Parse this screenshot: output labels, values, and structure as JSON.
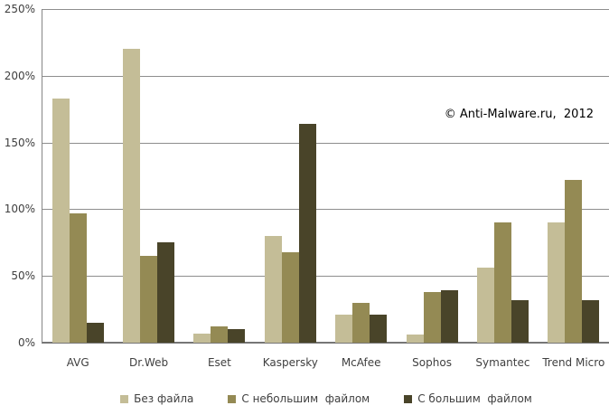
{
  "chart_data": {
    "type": "bar",
    "categories": [
      "AVG",
      "Dr.Web",
      "Eset",
      "Kaspersky",
      "McAfee",
      "Sophos",
      "Symantec",
      "Trend Micro"
    ],
    "series": [
      {
        "name": "Без файла",
        "color": "#C4BD97",
        "values": [
          183,
          220,
          7,
          80,
          21,
          6,
          56,
          90
        ]
      },
      {
        "name": "С небольшим  файлом",
        "color": "#948A54",
        "values": [
          97,
          65,
          12,
          68,
          30,
          38,
          90,
          122
        ]
      },
      {
        "name": "С большим  файлом",
        "color": "#494429",
        "values": [
          15,
          75,
          10,
          164,
          21,
          39,
          32,
          32
        ]
      }
    ],
    "title": "",
    "xlabel": "",
    "ylabel": "",
    "ylim": [
      0,
      250
    ],
    "ytick_step": 50,
    "ytick_suffix": "%",
    "grid": true,
    "legend_position": "bottom"
  },
  "annotation": {
    "copyright": "© Anti-Malware.ru,  2012"
  },
  "colors": {
    "background": "#FFFFFF",
    "gridline": "#8E8E8E",
    "axis_line": "#868686",
    "tick_text": "#3F3F3F",
    "copyright_text": "#000000"
  }
}
